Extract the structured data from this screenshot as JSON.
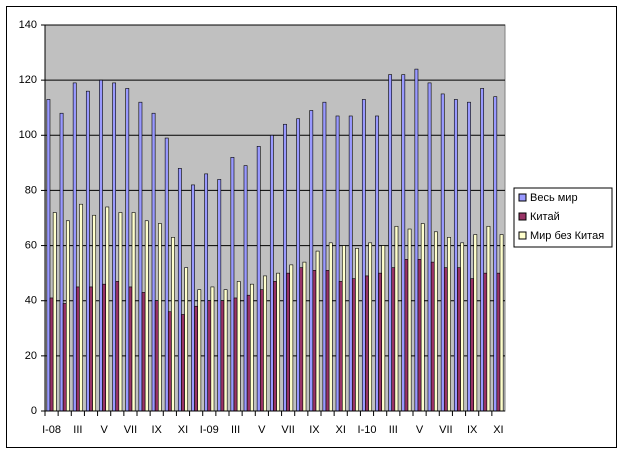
{
  "chart_data": {
    "type": "bar",
    "categories": [
      "I-08",
      null,
      "III",
      null,
      "V",
      null,
      "VII",
      null,
      "IX",
      null,
      "XI",
      null,
      "I-09",
      null,
      "III",
      null,
      "V",
      null,
      "VII",
      null,
      "IX",
      null,
      "XI",
      null,
      "I-10",
      null,
      "III",
      null,
      "V",
      null,
      "VII",
      null,
      "IX",
      null,
      "XI"
    ],
    "series": [
      {
        "name": "Весь мир",
        "color": "#9999ff",
        "values": [
          113,
          108,
          119,
          116,
          120,
          119,
          117,
          112,
          108,
          99,
          88,
          82,
          86,
          84,
          92,
          89,
          96,
          100,
          104,
          106,
          109,
          112,
          107,
          107,
          113,
          107,
          122,
          122,
          124,
          119,
          115,
          113,
          112,
          117,
          114
        ]
      },
      {
        "name": "Китай",
        "color": "#993366",
        "values": [
          41,
          39,
          45,
          45,
          46,
          47,
          45,
          43,
          40,
          36,
          35,
          38,
          40,
          40,
          41,
          42,
          44,
          47,
          50,
          52,
          51,
          51,
          47,
          48,
          49,
          50,
          52,
          55,
          55,
          54,
          52,
          52,
          48,
          50,
          50
        ]
      },
      {
        "name": "Мир без Китая",
        "color": "#ffffcc",
        "values": [
          72,
          69,
          75,
          71,
          74,
          72,
          72,
          69,
          68,
          63,
          52,
          44,
          45,
          44,
          47,
          46,
          49,
          50,
          53,
          54,
          58,
          61,
          60,
          59,
          61,
          60,
          67,
          66,
          68,
          65,
          63,
          61,
          64,
          67,
          64
        ]
      }
    ],
    "ylim": [
      0,
      140
    ],
    "yticks": [
      0,
      20,
      40,
      60,
      80,
      100,
      120,
      140
    ],
    "grid": true,
    "legend": "right"
  }
}
